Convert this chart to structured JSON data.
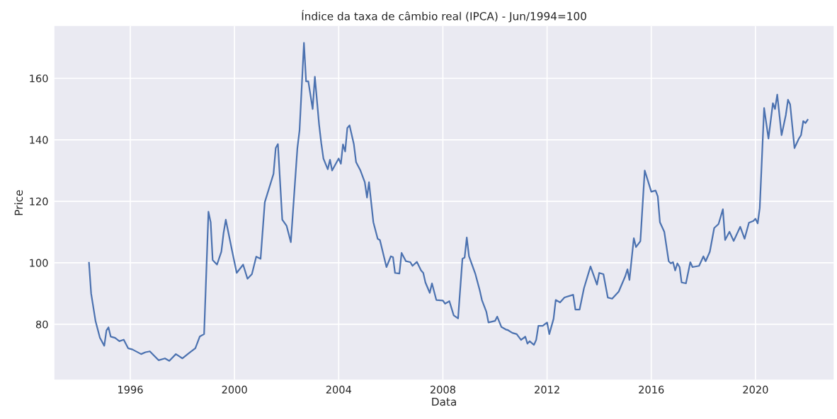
{
  "chart_data": {
    "type": "line",
    "title": "Índice da taxa de câmbio real (IPCA) - Jun/1994=100",
    "xlabel": "Data",
    "ylabel": "Price",
    "x": [
      "1994-06",
      "1994-07",
      "1994-09",
      "1994-11",
      "1995-01",
      "1995-02",
      "1995-03",
      "1995-04",
      "1995-06",
      "1995-08",
      "1995-10",
      "1995-12",
      "1996-02",
      "1996-06",
      "1996-08",
      "1996-10",
      "1997-02",
      "1997-05",
      "1997-07",
      "1997-10",
      "1998-01",
      "1998-04",
      "1998-07",
      "1998-09",
      "1998-11",
      "1999-01",
      "1999-02",
      "1999-03",
      "1999-05",
      "1999-07",
      "1999-08",
      "1999-09",
      "1999-12",
      "2000-02",
      "2000-05",
      "2000-07",
      "2000-09",
      "2000-11",
      "2001-01",
      "2001-03",
      "2001-07",
      "2001-08",
      "2001-09",
      "2001-11",
      "2002-01",
      "2002-03",
      "2002-06",
      "2002-07",
      "2002-09",
      "2002-10",
      "2002-11",
      "2003-01",
      "2003-02",
      "2003-04",
      "2003-05",
      "2003-06",
      "2003-08",
      "2003-09",
      "2003-10",
      "2004-01",
      "2004-02",
      "2004-03",
      "2004-04",
      "2004-05",
      "2004-06",
      "2004-08",
      "2004-09",
      "2004-11",
      "2005-01",
      "2005-02",
      "2005-03",
      "2005-05",
      "2005-07",
      "2005-08",
      "2005-11",
      "2006-01",
      "2006-02",
      "2006-03",
      "2006-05",
      "2006-06",
      "2006-08",
      "2006-10",
      "2006-11",
      "2007-01",
      "2007-03",
      "2007-04",
      "2007-05",
      "2007-07",
      "2007-08",
      "2007-10",
      "2008-01",
      "2008-02",
      "2008-04",
      "2008-06",
      "2008-08",
      "2008-10",
      "2008-11",
      "2008-12",
      "2009-01",
      "2009-04",
      "2009-06",
      "2009-07",
      "2009-09",
      "2009-10",
      "2010-01",
      "2010-02",
      "2010-04",
      "2010-06",
      "2010-07",
      "2010-09",
      "2010-11",
      "2011-01",
      "2011-03",
      "2011-04",
      "2011-05",
      "2011-07",
      "2011-08",
      "2011-09",
      "2011-11",
      "2012-01",
      "2012-02",
      "2012-04",
      "2012-05",
      "2012-07",
      "2012-09",
      "2013-01",
      "2013-02",
      "2013-04",
      "2013-06",
      "2013-09",
      "2013-12",
      "2014-01",
      "2014-03",
      "2014-05",
      "2014-07",
      "2014-10",
      "2015-01",
      "2015-02",
      "2015-03",
      "2015-05",
      "2015-06",
      "2015-08",
      "2015-10",
      "2015-11",
      "2016-01",
      "2016-03",
      "2016-04",
      "2016-05",
      "2016-07",
      "2016-09",
      "2016-10",
      "2016-11",
      "2016-12",
      "2017-01",
      "2017-02",
      "2017-03",
      "2017-05",
      "2017-07",
      "2017-08",
      "2017-11",
      "2018-01",
      "2018-02",
      "2018-04",
      "2018-06",
      "2018-08",
      "2018-10",
      "2018-11",
      "2019-01",
      "2019-03",
      "2019-06",
      "2019-08",
      "2019-10",
      "2019-12",
      "2020-01",
      "2020-02",
      "2020-03",
      "2020-05",
      "2020-07",
      "2020-09",
      "2020-10",
      "2020-11",
      "2021-01",
      "2021-03",
      "2021-04",
      "2021-05",
      "2021-07",
      "2021-09",
      "2021-10",
      "2021-11",
      "2021-12",
      "2022-01"
    ],
    "series": [
      {
        "color": "#4c72b0",
        "values": [
          100,
          90,
          81,
          75.6,
          73,
          78,
          79,
          76,
          75.6,
          74.5,
          75,
          72.2,
          71.8,
          70.3,
          70.9,
          71.2,
          68.3,
          68.9,
          68.1,
          70.3,
          68.9,
          70.6,
          72.2,
          76,
          76.8,
          116.6,
          113.2,
          100.9,
          99.4,
          103.6,
          109.7,
          114,
          103.6,
          96.7,
          99.4,
          94.8,
          96.3,
          102,
          101.3,
          119.7,
          128.9,
          137.3,
          138.6,
          114,
          112,
          106.7,
          137.3,
          143,
          171.5,
          159,
          159,
          150,
          160.5,
          145,
          139,
          133.9,
          130.4,
          133.5,
          130,
          133.9,
          132.2,
          138.5,
          136.2,
          143.8,
          144.7,
          138.5,
          132.7,
          130,
          126.2,
          121.2,
          126.2,
          113.2,
          107.8,
          107.4,
          98.6,
          102.1,
          101.8,
          96.7,
          96.5,
          103.2,
          100.5,
          100.2,
          99,
          100.3,
          97.5,
          96.7,
          93.6,
          90.2,
          93.3,
          87.9,
          87.7,
          86.7,
          87.5,
          82.9,
          81.9,
          101.3,
          101.7,
          108.2,
          102.1,
          96.3,
          91,
          87.9,
          84.1,
          80.6,
          81.1,
          82.5,
          79.1,
          78.3,
          78.1,
          77.2,
          76.8,
          74.9,
          76,
          73.7,
          74.5,
          73.3,
          74.9,
          79.5,
          79.5,
          80.6,
          76.8,
          81.8,
          87.9,
          87.1,
          88.7,
          89.6,
          84.8,
          84.8,
          91.7,
          98.8,
          92.9,
          96.7,
          96.3,
          88.7,
          88.3,
          90.6,
          95.6,
          97.9,
          94.4,
          108,
          105.1,
          107,
          130,
          127.7,
          123.1,
          123.5,
          121.6,
          113.2,
          110.1,
          100.5,
          99.8,
          100.2,
          97.5,
          99.8,
          98.6,
          93.6,
          93.3,
          100.2,
          98.6,
          99,
          102.1,
          100.5,
          103.6,
          111.3,
          112.6,
          117.4,
          107.4,
          110.1,
          107.1,
          111.7,
          107.8,
          113,
          113.6,
          114.3,
          112.8,
          117.8,
          150.3,
          140.4,
          151.9,
          150,
          154.7,
          141.5,
          148,
          153,
          151.5,
          137.3,
          140.4,
          141.5,
          146.1,
          145.4,
          146.5
        ]
      }
    ],
    "xlim": [
      "1993-02",
      "2023-01"
    ],
    "xticks": [
      "1996",
      "2000",
      "2004",
      "2008",
      "2012",
      "2016",
      "2020"
    ],
    "ylim": [
      62,
      177
    ],
    "yticks": [
      80,
      100,
      120,
      140,
      160
    ],
    "grid": true,
    "line_style": "solid",
    "marker": "none"
  }
}
